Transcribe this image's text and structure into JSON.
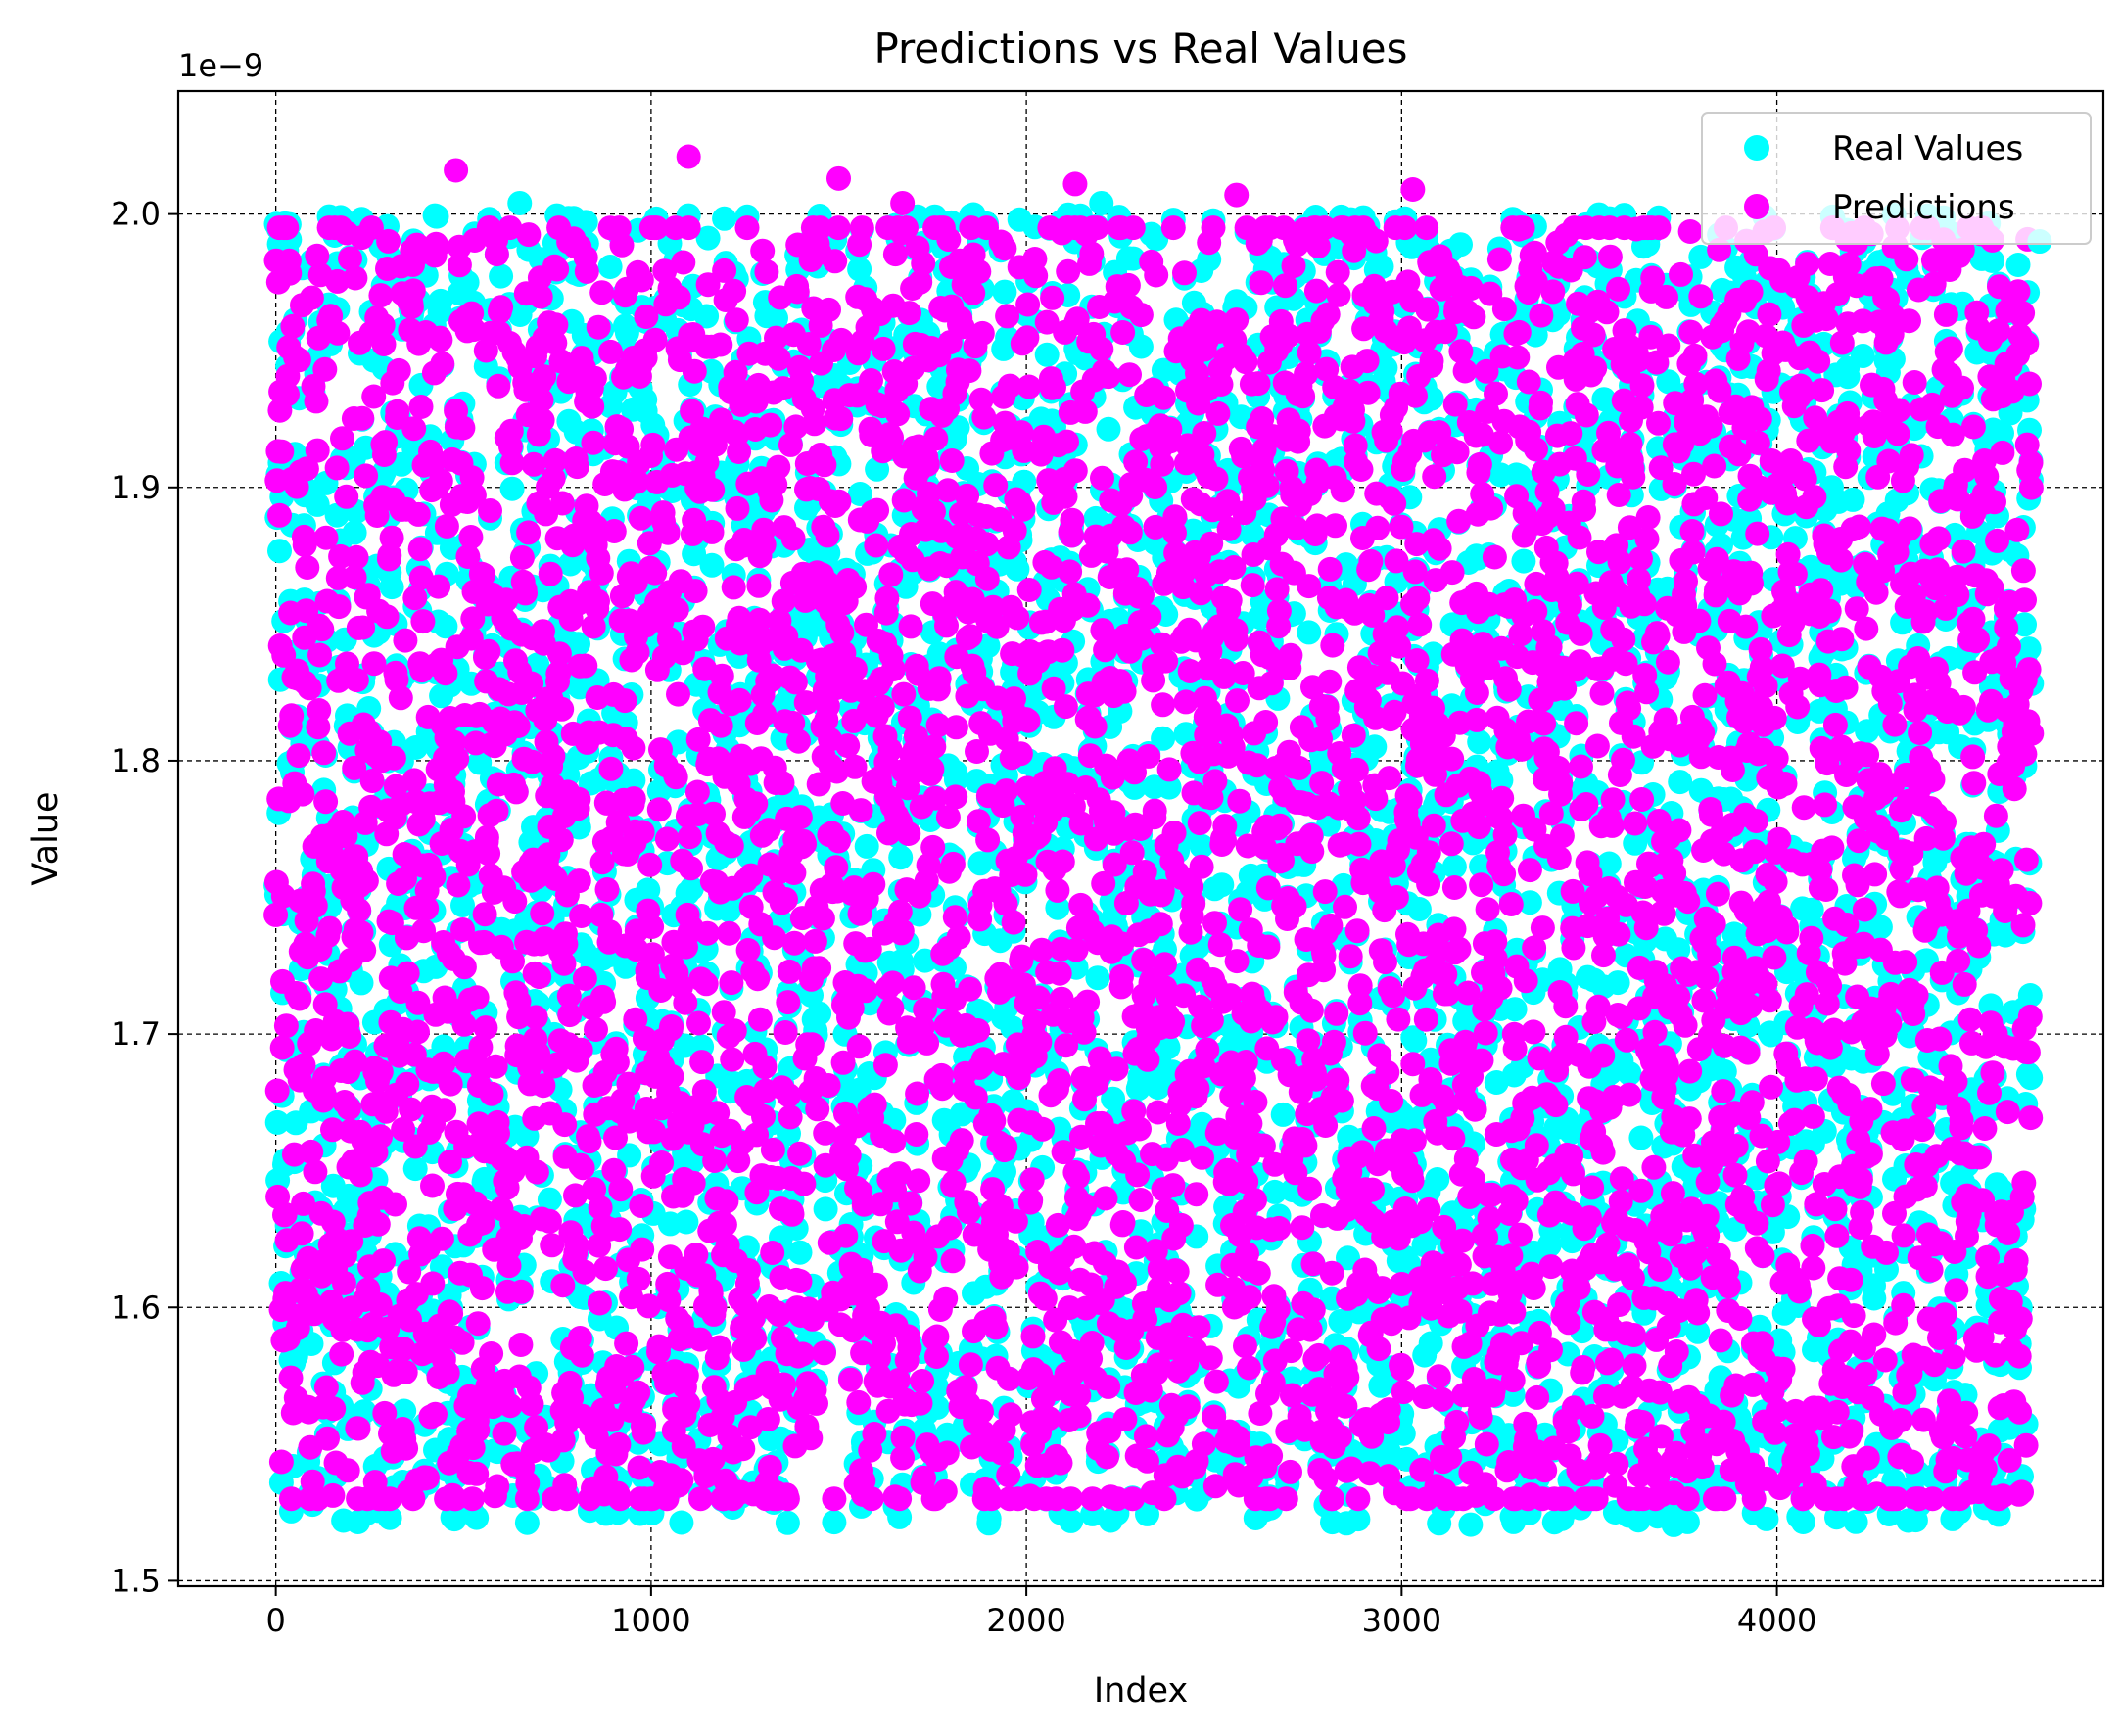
{
  "chart_data": {
    "type": "scatter",
    "title": "Predictions vs Real Values",
    "xlabel": "Index",
    "ylabel": "Value",
    "y_offset_label": "1e−9",
    "xlim": [
      -260,
      4870
    ],
    "ylim": [
      1.498,
      2.045
    ],
    "x_ticks": [
      0,
      1000,
      2000,
      3000,
      4000
    ],
    "y_ticks": [
      1.5,
      1.6,
      1.7,
      1.8,
      1.9,
      2.0
    ],
    "x_tick_labels": [
      "0",
      "1000",
      "2000",
      "3000",
      "4000"
    ],
    "y_tick_labels": [
      "1.5",
      "1.6",
      "1.7",
      "1.8",
      "1.9",
      "2.0"
    ],
    "grid": true,
    "grid_style": "dashed black",
    "legend_position": "top-right",
    "n_points": 4680,
    "series": [
      {
        "name": "Real Values",
        "color": "#00ffff",
        "approx_value_range": [
          1.52,
          2.0
        ],
        "highlight_points": [
          {
            "x": 180,
            "y": 1.522
          },
          {
            "x": 650,
            "y": 2.004
          },
          {
            "x": 1900,
            "y": 1.521
          },
          {
            "x": 2200,
            "y": 2.004
          },
          {
            "x": 3100,
            "y": 1.521
          },
          {
            "x": 4350,
            "y": 1.522
          },
          {
            "x": 4700,
            "y": 1.99
          }
        ]
      },
      {
        "name": "Predictions",
        "color": "#ff00ff",
        "approx_value_range": [
          1.53,
          2.02
        ],
        "highlight_points": [
          {
            "x": 480,
            "y": 2.016
          },
          {
            "x": 1100,
            "y": 2.021
          },
          {
            "x": 1500,
            "y": 2.013
          },
          {
            "x": 2130,
            "y": 2.011
          },
          {
            "x": 2560,
            "y": 2.007
          },
          {
            "x": 3030,
            "y": 2.009
          },
          {
            "x": 1670,
            "y": 2.004
          },
          {
            "x": 2010,
            "y": 1.531
          },
          {
            "x": 770,
            "y": 1.535
          }
        ]
      }
    ]
  }
}
